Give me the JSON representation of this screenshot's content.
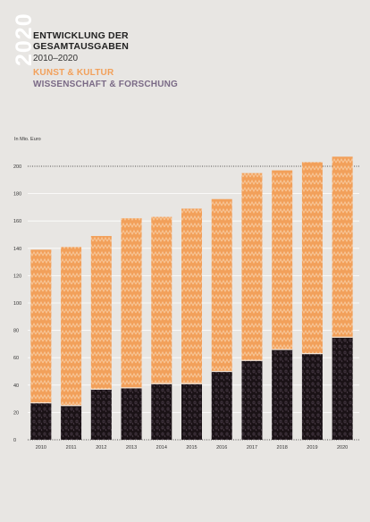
{
  "header": {
    "year": "2020",
    "title_line1": "ENTWICKLUNG DER",
    "title_line2": "GESAMTAUSGABEN",
    "subtitle": "2010–2020"
  },
  "legend": {
    "items": [
      {
        "label": "KUNST & KULTUR",
        "color": "#f2a05a"
      },
      {
        "label": "WISSENSCHAFT & FORSCHUNG",
        "color": "#7a6a86"
      }
    ]
  },
  "chart_data": {
    "type": "bar",
    "stacked": true,
    "unit_label": "In Mio. Euro",
    "categories": [
      "2010",
      "2011",
      "2012",
      "2013",
      "2014",
      "2015",
      "2016",
      "2017",
      "2018",
      "2019",
      "2020"
    ],
    "series": [
      {
        "name": "WISSENSCHAFT & FORSCHUNG",
        "color": "#1a1216",
        "values": [
          27,
          25,
          37,
          38,
          41,
          41,
          50,
          58,
          66,
          63,
          75
        ]
      },
      {
        "name": "KUNST & KULTUR",
        "color": "#f2a05a",
        "values": [
          112,
          116,
          112,
          124,
          122,
          128,
          126,
          137,
          131,
          140,
          132
        ]
      }
    ],
    "ylim": [
      0,
      200
    ],
    "yticks": [
      0,
      20,
      40,
      60,
      80,
      100,
      120,
      140,
      160,
      180,
      200
    ],
    "grid": true
  }
}
